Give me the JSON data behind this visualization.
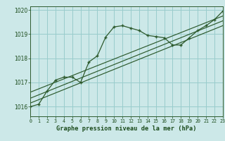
{
  "title": "Graphe pression niveau de la mer (hPa)",
  "bg_color": "#cce8e8",
  "grid_color": "#99cccc",
  "line_color": "#2d5a2d",
  "label_color": "#1a4a1a",
  "xlim": [
    0,
    23
  ],
  "ylim": [
    1015.6,
    1020.15
  ],
  "yticks": [
    1016,
    1017,
    1018,
    1019,
    1020
  ],
  "xticks": [
    0,
    1,
    2,
    3,
    4,
    5,
    6,
    7,
    8,
    9,
    10,
    11,
    12,
    13,
    14,
    15,
    16,
    17,
    18,
    19,
    20,
    21,
    22,
    23
  ],
  "hours": [
    0,
    1,
    2,
    3,
    4,
    5,
    6,
    7,
    8,
    9,
    10,
    11,
    12,
    13,
    14,
    15,
    16,
    17,
    18,
    19,
    20,
    21,
    22,
    23
  ],
  "pressure": [
    1016.0,
    1016.1,
    1016.65,
    1017.1,
    1017.22,
    1017.22,
    1017.0,
    1017.85,
    1018.1,
    1018.88,
    1019.3,
    1019.35,
    1019.25,
    1019.15,
    1018.95,
    1018.9,
    1018.85,
    1018.55,
    1018.55,
    1018.85,
    1019.15,
    1019.35,
    1019.6,
    1019.95
  ],
  "trend1_x": [
    0,
    23
  ],
  "trend1_y": [
    1016.35,
    1019.55
  ],
  "trend2_x": [
    0,
    23
  ],
  "trend2_y": [
    1016.6,
    1019.75
  ],
  "trend3_x": [
    0,
    23
  ],
  "trend3_y": [
    1016.15,
    1019.35
  ]
}
